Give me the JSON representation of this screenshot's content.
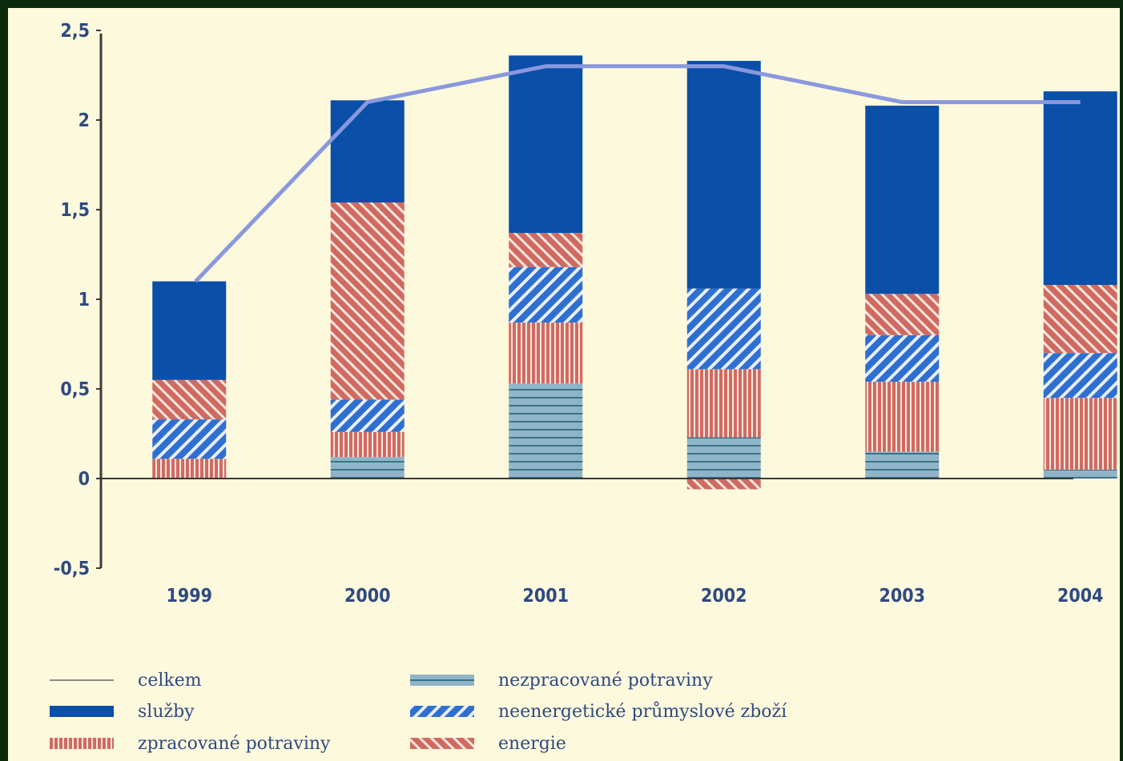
{
  "chart_data": {
    "type": "bar",
    "stacked": true,
    "categories": [
      "1999",
      "2000",
      "2001",
      "2002",
      "2003",
      "2004"
    ],
    "ylim": [
      -0.5,
      2.5
    ],
    "yticks": [
      "-0,5",
      "0",
      "0,5",
      "1",
      "1,5",
      "2",
      "2,5"
    ],
    "ytick_values": [
      -0.5,
      0,
      0.5,
      1,
      1.5,
      2,
      2.5
    ],
    "series": [
      {
        "name": "nezpracované potraviny",
        "key": "nezprac",
        "values": [
          0.0,
          0.12,
          0.53,
          0.23,
          0.15,
          0.05
        ],
        "color": "#8fb4c8",
        "pattern": "hlines"
      },
      {
        "name": "zpracované potraviny",
        "key": "zprac",
        "values": [
          0.11,
          0.14,
          0.34,
          0.38,
          0.39,
          0.4
        ],
        "color": "#d06a60",
        "pattern": "vlines"
      },
      {
        "name": "neenergetické průmyslové zboží",
        "key": "neenerg",
        "values": [
          0.22,
          0.18,
          0.31,
          0.45,
          0.26,
          0.25
        ],
        "color": "#2f6fd0",
        "pattern": "diag"
      },
      {
        "name": "energie",
        "key": "energie",
        "values": [
          0.22,
          1.1,
          0.19,
          -0.06,
          0.23,
          0.38
        ],
        "color": "#d06a60",
        "pattern": "diag2"
      },
      {
        "name": "služby",
        "key": "sluzby",
        "values": [
          0.55,
          0.57,
          0.99,
          1.27,
          1.05,
          1.08
        ],
        "color": "#0a4fa8",
        "pattern": "solid"
      }
    ],
    "line": {
      "name": "celkem",
      "values": [
        1.1,
        2.1,
        2.3,
        2.3,
        2.1,
        2.1
      ],
      "color": "#8a98de"
    },
    "legend": [
      {
        "label": "celkem",
        "key": "celkem"
      },
      {
        "label": "služby",
        "key": "sluzby"
      },
      {
        "label": "zpracované potraviny",
        "key": "zprac"
      },
      {
        "label": "nezpracované potraviny",
        "key": "nezprac"
      },
      {
        "label": "neenergetické průmyslové zboží",
        "key": "neenerg"
      },
      {
        "label": "energie",
        "key": "energie"
      }
    ],
    "legend_placement": "bottom",
    "grid": false
  }
}
